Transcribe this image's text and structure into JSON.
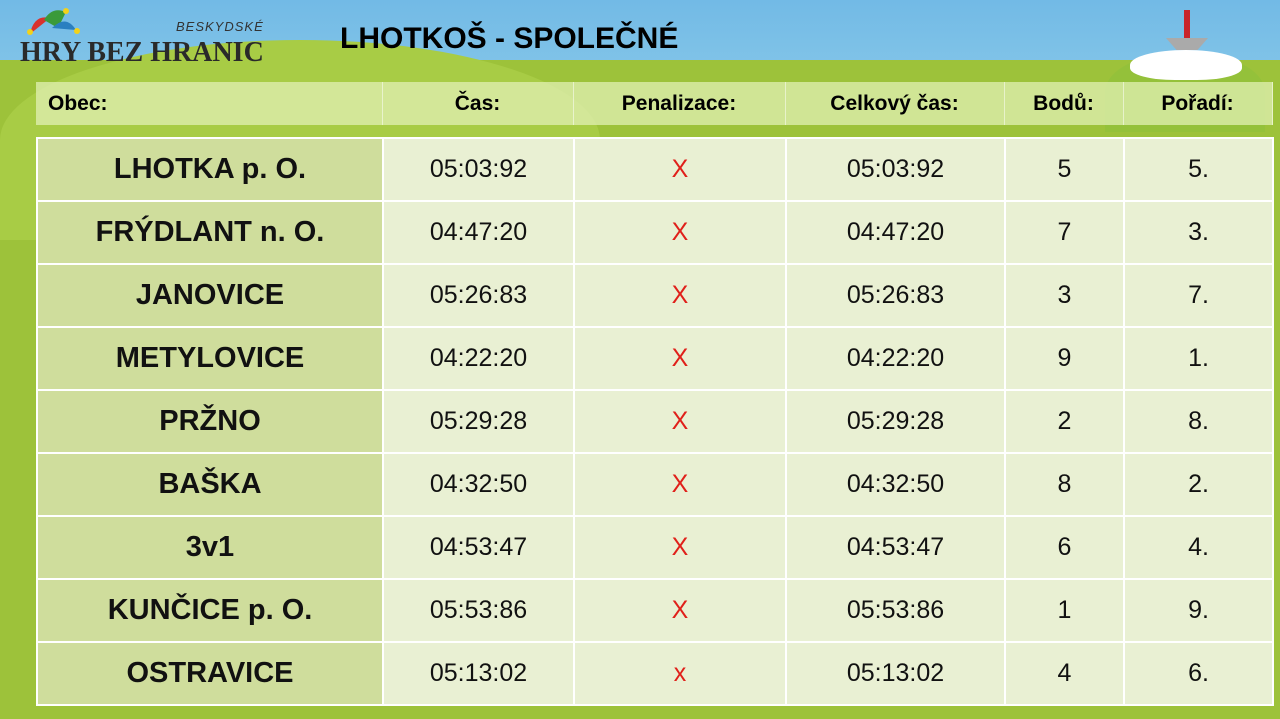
{
  "logo": {
    "top": "BESKYDSKÉ",
    "name": "HRY BEZ HRANIC"
  },
  "title": "LHOTKOŠ - SPOLEČNÉ",
  "columns": [
    "Obec:",
    "Čas:",
    "Penalizace:",
    "Celkový čas:",
    "Bodů:",
    "Pořadí:"
  ],
  "rows": [
    [
      "LHOTKA p. O.",
      "05:03:92",
      "X",
      "05:03:92",
      "5",
      "5."
    ],
    [
      "FRÝDLANT n. O.",
      "04:47:20",
      "X",
      "04:47:20",
      "7",
      "3."
    ],
    [
      "JANOVICE",
      "05:26:83",
      "X",
      "05:26:83",
      "3",
      "7."
    ],
    [
      "METYLOVICE",
      "04:22:20",
      "X",
      "04:22:20",
      "9",
      "1."
    ],
    [
      "PRŽNO",
      "05:29:28",
      "X",
      "05:29:28",
      "2",
      "8."
    ],
    [
      "BAŠKA",
      "04:32:50",
      "X",
      "04:32:50",
      "8",
      "2."
    ],
    [
      "3v1",
      "04:53:47",
      "X",
      "04:53:47",
      "6",
      "4."
    ],
    [
      "KUNČICE p. O.",
      "05:53:86",
      "X",
      "05:53:86",
      "1",
      "9."
    ],
    [
      "OSTRAVICE",
      "05:13:02",
      "x",
      "05:13:02",
      "4",
      "6."
    ]
  ],
  "colors": {
    "penalty": "#e0201a",
    "background_green": "#9dc23a",
    "sky": "#72bae6"
  }
}
